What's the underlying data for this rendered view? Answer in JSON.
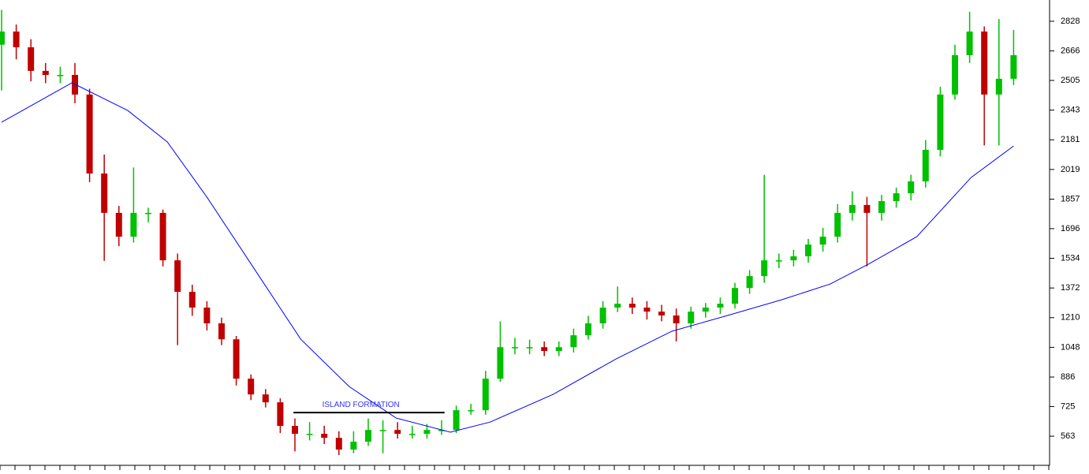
{
  "chart_data": {
    "type": "candlestick",
    "open": [
      2700,
      2772,
      2686,
      2557,
      2535,
      2535,
      2428,
      1997,
      1782,
      1652,
      1782,
      1782,
      1523,
      1351,
      1265,
      1179,
      1092,
      877,
      791,
      748,
      619,
      576,
      576,
      554,
      490,
      533,
      597,
      597,
      576,
      576,
      597,
      597,
      705,
      705,
      877,
      1049,
      1049,
      1049,
      1028,
      1049,
      1114,
      1179,
      1265,
      1286,
      1265,
      1243,
      1222,
      1179,
      1243,
      1265,
      1286,
      1372,
      1437,
      1523,
      1523,
      1545,
      1609,
      1652,
      1782,
      1825,
      1782,
      1846,
      1889,
      1954,
      2126,
      2428,
      2643,
      2772,
      2428,
      2514
    ],
    "high": [
      2890,
      2810,
      2730,
      2600,
      2580,
      2600,
      2460,
      2100,
      1820,
      2030,
      1810,
      1800,
      1560,
      1390,
      1300,
      1210,
      1110,
      900,
      820,
      770,
      660,
      640,
      620,
      590,
      590,
      660,
      650,
      640,
      620,
      630,
      650,
      730,
      740,
      920,
      1190,
      1100,
      1090,
      1080,
      1080,
      1150,
      1220,
      1300,
      1380,
      1320,
      1300,
      1280,
      1260,
      1270,
      1290,
      1320,
      1400,
      1470,
      1990,
      1560,
      1580,
      1640,
      1700,
      1830,
      1900,
      1870,
      1880,
      1920,
      1990,
      2180,
      2470,
      2700,
      2880,
      2800,
      2840,
      2780
    ],
    "low": [
      2450,
      2620,
      2500,
      2490,
      2490,
      2380,
      1950,
      1520,
      1600,
      1620,
      1730,
      1490,
      1060,
      1220,
      1140,
      1060,
      840,
      760,
      720,
      580,
      480,
      540,
      520,
      460,
      470,
      510,
      470,
      550,
      550,
      550,
      570,
      580,
      680,
      680,
      860,
      1010,
      1010,
      1000,
      1000,
      1020,
      1090,
      1150,
      1240,
      1230,
      1200,
      1190,
      1080,
      1150,
      1210,
      1230,
      1260,
      1340,
      1400,
      1480,
      1490,
      1510,
      1570,
      1620,
      1740,
      1490,
      1740,
      1810,
      1850,
      1920,
      2090,
      2400,
      2600,
      2150,
      2150,
      2480
    ],
    "close": [
      2772,
      2686,
      2557,
      2535,
      2535,
      2428,
      1997,
      1782,
      1652,
      1782,
      1782,
      1523,
      1351,
      1265,
      1179,
      1092,
      877,
      791,
      748,
      619,
      576,
      576,
      554,
      490,
      533,
      597,
      597,
      576,
      576,
      597,
      597,
      705,
      705,
      877,
      1049,
      1049,
      1049,
      1028,
      1049,
      1114,
      1179,
      1265,
      1286,
      1265,
      1243,
      1222,
      1179,
      1243,
      1265,
      1286,
      1372,
      1437,
      1523,
      1523,
      1545,
      1609,
      1652,
      1782,
      1825,
      1782,
      1846,
      1889,
      1954,
      2126,
      2428,
      2643,
      2772,
      2428,
      2514,
      2643
    ],
    "up_color": "#00c000",
    "down_color": "#c00000",
    "moving_average": {
      "color": "#0000ff",
      "x": [
        0,
        4.8,
        8.6,
        11.3,
        14,
        17.2,
        20.4,
        23.7,
        26.9,
        30.6,
        33.3,
        37.6,
        41.9,
        45.7,
        49.5,
        53.2,
        56.5,
        59.1,
        62.4,
        66.1,
        69
      ],
      "values": [
        2277,
        2492,
        2341,
        2169,
        1868,
        1480,
        1092,
        834,
        662,
        585,
        640,
        791,
        985,
        1136,
        1222,
        1308,
        1394,
        1502,
        1652,
        1975,
        2147
      ]
    },
    "annotation": {
      "text": "ISLAND FORMATION",
      "x": 24.5,
      "y": 735,
      "line_x": [
        19.9,
        30.2
      ],
      "line_y": 692,
      "color": "#3333ff"
    },
    "ylim": [
      404,
      2944
    ],
    "yticks": [
      563,
      725,
      886,
      1048,
      1210,
      1372,
      1534,
      1696,
      1857,
      2019,
      2181,
      2343,
      2505,
      2666,
      2828
    ]
  }
}
